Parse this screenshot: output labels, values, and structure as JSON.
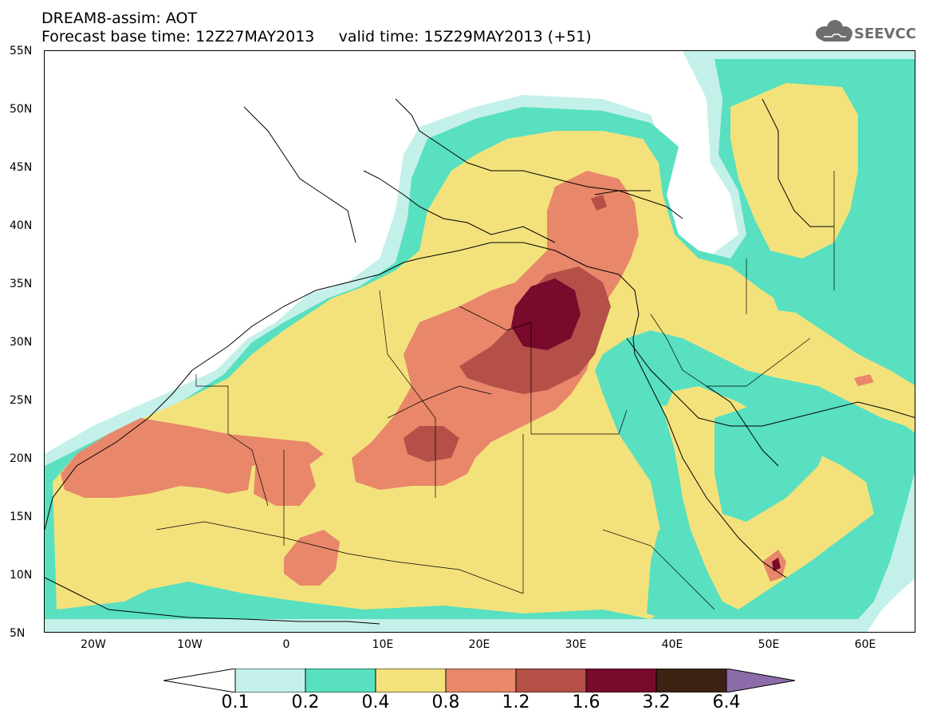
{
  "header": {
    "line1": "DREAM8-assim: AOT",
    "line2": "Forecast base time: 12Z27MAY2013     valid time: 15Z29MAY2013 (+51)"
  },
  "logo": {
    "text": "SEEVCCC",
    "icon": "cloud-icon"
  },
  "map": {
    "lon_range": [
      -25,
      65
    ],
    "lat_range": [
      5,
      55
    ],
    "y_ticks": [
      "55N",
      "50N",
      "45N",
      "40N",
      "35N",
      "30N",
      "25N",
      "20N",
      "15N",
      "10N",
      "5N"
    ],
    "x_ticks": [
      "20W",
      "10W",
      "0",
      "10E",
      "20E",
      "30E",
      "40E",
      "50E",
      "60E"
    ]
  },
  "colorbar": {
    "labels": [
      "0.1",
      "0.2",
      "0.4",
      "0.8",
      "1.2",
      "1.6",
      "3.2",
      "6.4"
    ],
    "colors": [
      "#c4f0ea",
      "#58e0c0",
      "#f3e27c",
      "#e8876a",
      "#b45048",
      "#7a0a2c",
      "#3d2214",
      "#8c6ca8"
    ]
  }
}
